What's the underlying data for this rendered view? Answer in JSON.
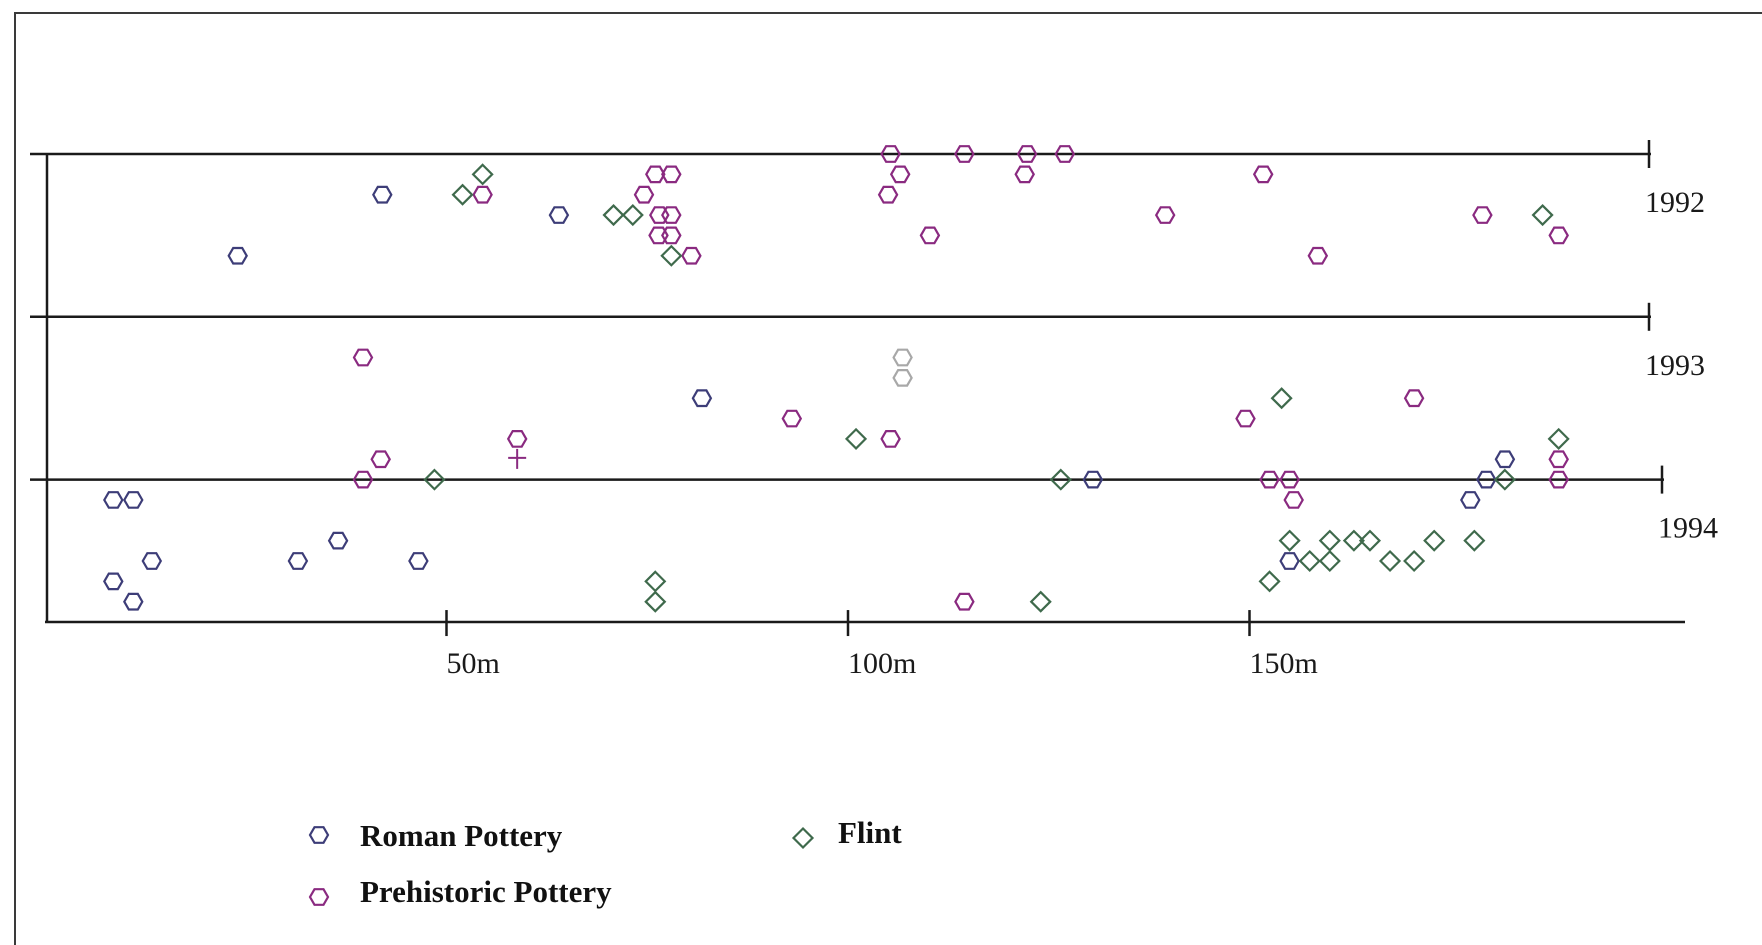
{
  "colors": {
    "roman": "#3d3d78",
    "prehistoric": "#8a2a80",
    "flint": "#3f6a4c",
    "faint": "#a8a8a8",
    "axis": "#1a1a1a"
  },
  "chart_data": {
    "type": "scatter",
    "title": "",
    "xlabel": "",
    "ylabel": "",
    "x_unit": "m",
    "xlim": [
      0,
      200
    ],
    "x_ticks": [
      {
        "value": 50,
        "label": "50m"
      },
      {
        "value": 100,
        "label": "100m"
      },
      {
        "value": 150,
        "label": "150m"
      }
    ],
    "lanes": [
      {
        "label": "1992",
        "top_row": 0,
        "bottom_row": 8
      },
      {
        "label": "1993",
        "top_row": 8,
        "bottom_row": 16
      },
      {
        "label": "1994",
        "top_row": 16,
        "bottom_row": 23
      }
    ],
    "legend": [
      {
        "name": "Roman Pottery",
        "symbol": "hexagon",
        "color_key": "roman"
      },
      {
        "name": "Flint",
        "symbol": "diamond",
        "color_key": "flint"
      },
      {
        "name": "Prehistoric Pottery",
        "symbol": "hexagon",
        "color_key": "prehistoric"
      }
    ],
    "series": [
      {
        "name": "Roman Pottery",
        "symbol": "hexagon",
        "points": [
          [
            24,
            5
          ],
          [
            42,
            2
          ],
          [
            64,
            3
          ],
          [
            81.8,
            12
          ],
          [
            130.5,
            16
          ],
          [
            179.5,
            16
          ],
          [
            181.8,
            15
          ],
          [
            8.5,
            17
          ],
          [
            11,
            17
          ],
          [
            13.3,
            20
          ],
          [
            31.5,
            20
          ],
          [
            36.5,
            19
          ],
          [
            46.5,
            20
          ],
          [
            8.5,
            21
          ],
          [
            11,
            22
          ],
          [
            155,
            20
          ],
          [
            177.5,
            17
          ]
        ]
      },
      {
        "name": "Prehistoric Pottery",
        "symbol": "hexagon",
        "points": [
          [
            105.3,
            0
          ],
          [
            114.5,
            0
          ],
          [
            122.3,
            0
          ],
          [
            127,
            0
          ],
          [
            106.5,
            1
          ],
          [
            151.7,
            1
          ],
          [
            122,
            1
          ],
          [
            76,
            1
          ],
          [
            78,
            1
          ],
          [
            54.5,
            2
          ],
          [
            74.6,
            2
          ],
          [
            105,
            2
          ],
          [
            76.5,
            3
          ],
          [
            78,
            3
          ],
          [
            139.5,
            3
          ],
          [
            179,
            3
          ],
          [
            110.2,
            4
          ],
          [
            76.4,
            4
          ],
          [
            78,
            4
          ],
          [
            80.5,
            5
          ],
          [
            158.5,
            5
          ],
          [
            188.5,
            4
          ],
          [
            39.6,
            10
          ],
          [
            170.5,
            12
          ],
          [
            93,
            13
          ],
          [
            149.5,
            13
          ],
          [
            58.8,
            14
          ],
          [
            105.3,
            14
          ],
          [
            41.8,
            15
          ],
          [
            188.5,
            15
          ],
          [
            39.6,
            16
          ],
          [
            152.5,
            16
          ],
          [
            155,
            16
          ],
          [
            155.5,
            17
          ],
          [
            188.5,
            16
          ],
          [
            114.5,
            22
          ]
        ]
      },
      {
        "name": "Flint",
        "symbol": "diamond",
        "points": [
          [
            54.5,
            1
          ],
          [
            52,
            2
          ],
          [
            70.8,
            3
          ],
          [
            73.2,
            3
          ],
          [
            78,
            5
          ],
          [
            186.5,
            3
          ],
          [
            154,
            12
          ],
          [
            101,
            14
          ],
          [
            48.5,
            16
          ],
          [
            126.5,
            16
          ],
          [
            188.5,
            14
          ],
          [
            181.8,
            16
          ],
          [
            155,
            19
          ],
          [
            160,
            19
          ],
          [
            163,
            19
          ],
          [
            157.5,
            20
          ],
          [
            160,
            20
          ],
          [
            165,
            19
          ],
          [
            167.5,
            20
          ],
          [
            170.5,
            20
          ],
          [
            173,
            19
          ],
          [
            178,
            19
          ],
          [
            76,
            21
          ],
          [
            76,
            22
          ],
          [
            152.5,
            21
          ],
          [
            124,
            22
          ]
        ]
      },
      {
        "name": "",
        "symbol": "hexagon-faint",
        "points": [
          [
            106.8,
            10
          ],
          [
            106.8,
            11
          ]
        ]
      }
    ]
  }
}
